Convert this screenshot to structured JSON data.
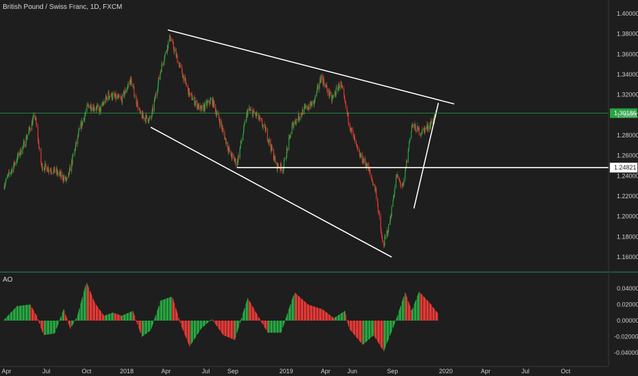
{
  "chart_data": [
    {
      "type": "candlestick",
      "title": "British Pound / Swiss Franc, 1D, FXCM",
      "ylim": [
        1.15,
        1.41
      ],
      "y_ticks": [
        "1.40000",
        "1.38000",
        "1.36000",
        "1.34000",
        "1.32000",
        "1.30000",
        "1.28000",
        "1.26000",
        "1.24000",
        "1.22000",
        "1.20000",
        "1.18000",
        "1.16000"
      ],
      "x_ticks": [
        "Apr",
        "Jul",
        "Oct",
        "2018",
        "Apr",
        "Jul",
        "Sep",
        "2019",
        "Apr",
        "Jun",
        "Sep",
        "2020",
        "Apr",
        "Jul",
        "Oct"
      ],
      "up_color": "#26a641",
      "down_color": "#e53935",
      "price_path": [
        [
          "2017-03-25",
          1.23
        ],
        [
          "2017-05-10",
          1.27
        ],
        [
          "2017-06-05",
          1.3
        ],
        [
          "2017-06-20",
          1.25
        ],
        [
          "2017-07-20",
          1.245
        ],
        [
          "2017-08-18",
          1.235
        ],
        [
          "2017-09-15",
          1.285
        ],
        [
          "2017-10-05",
          1.31
        ],
        [
          "2017-11-01",
          1.305
        ],
        [
          "2017-11-20",
          1.32
        ],
        [
          "2017-12-20",
          1.315
        ],
        [
          "2018-01-10",
          1.335
        ],
        [
          "2018-02-01",
          1.3
        ],
        [
          "2018-02-25",
          1.295
        ],
        [
          "2018-03-20",
          1.345
        ],
        [
          "2018-04-10",
          1.377
        ],
        [
          "2018-05-01",
          1.35
        ],
        [
          "2018-05-25",
          1.32
        ],
        [
          "2018-06-20",
          1.305
        ],
        [
          "2018-07-15",
          1.315
        ],
        [
          "2018-08-05",
          1.29
        ],
        [
          "2018-08-25",
          1.262
        ],
        [
          "2018-09-10",
          1.252
        ],
        [
          "2018-10-05",
          1.305
        ],
        [
          "2018-10-25",
          1.3
        ],
        [
          "2018-11-15",
          1.285
        ],
        [
          "2018-12-10",
          1.25
        ],
        [
          "2018-12-25",
          1.248
        ],
        [
          "2019-01-15",
          1.29
        ],
        [
          "2019-02-10",
          1.305
        ],
        [
          "2019-03-05",
          1.312
        ],
        [
          "2019-03-22",
          1.338
        ],
        [
          "2019-04-15",
          1.315
        ],
        [
          "2019-05-05",
          1.332
        ],
        [
          "2019-05-25",
          1.292
        ],
        [
          "2019-06-15",
          1.262
        ],
        [
          "2019-07-05",
          1.25
        ],
        [
          "2019-07-25",
          1.225
        ],
        [
          "2019-08-10",
          1.17
        ],
        [
          "2019-08-25",
          1.192
        ],
        [
          "2019-09-10",
          1.24
        ],
        [
          "2019-09-25",
          1.228
        ],
        [
          "2019-10-15",
          1.29
        ],
        [
          "2019-11-05",
          1.283
        ],
        [
          "2019-11-25",
          1.29
        ],
        [
          "2019-12-10",
          1.3
        ]
      ],
      "annotations": [
        {
          "type": "trendline",
          "from": [
            "2018-04-05",
            1.384
          ],
          "to": [
            "2020-01-20",
            1.311
          ]
        },
        {
          "type": "trendline",
          "from": [
            "2018-02-25",
            1.288
          ],
          "to": [
            "2019-08-30",
            1.16
          ]
        },
        {
          "type": "trendline",
          "from": [
            "2019-10-20",
            1.208
          ],
          "to": [
            "2019-12-15",
            1.312
          ]
        },
        {
          "type": "hline",
          "y": 1.24821,
          "from": "2018-09-10",
          "label": "1.24821"
        },
        {
          "type": "price_line",
          "y": 1.30186,
          "label": "1.30186",
          "color": "#26a641"
        }
      ]
    },
    {
      "type": "bar",
      "title": "AO",
      "ylim": [
        -0.047,
        0.047
      ],
      "y_ticks": [
        "0.04000",
        "0.02000",
        "0.00000",
        "-0.02000",
        "-0.04000"
      ],
      "up_color": "#26a641",
      "down_color": "#e53935",
      "ao_path": [
        [
          "2017-03-25",
          0.0
        ],
        [
          "2017-04-25",
          0.018
        ],
        [
          "2017-05-25",
          0.02
        ],
        [
          "2017-06-10",
          0.005
        ],
        [
          "2017-06-25",
          -0.018
        ],
        [
          "2017-07-20",
          -0.016
        ],
        [
          "2017-08-10",
          0.014
        ],
        [
          "2017-08-25",
          -0.01
        ],
        [
          "2017-09-10",
          0.005
        ],
        [
          "2017-10-01",
          0.048
        ],
        [
          "2017-10-20",
          0.022
        ],
        [
          "2017-11-10",
          0.006
        ],
        [
          "2017-12-01",
          0.01
        ],
        [
          "2017-12-20",
          0.006
        ],
        [
          "2018-01-15",
          0.012
        ],
        [
          "2018-02-05",
          -0.02
        ],
        [
          "2018-02-25",
          -0.012
        ],
        [
          "2018-03-20",
          0.025
        ],
        [
          "2018-04-15",
          0.03
        ],
        [
          "2018-05-05",
          -0.005
        ],
        [
          "2018-05-25",
          -0.032
        ],
        [
          "2018-06-20",
          -0.01
        ],
        [
          "2018-07-15",
          0.002
        ],
        [
          "2018-08-10",
          -0.018
        ],
        [
          "2018-09-05",
          -0.024
        ],
        [
          "2018-10-05",
          0.028
        ],
        [
          "2018-10-30",
          0.004
        ],
        [
          "2018-11-20",
          -0.015
        ],
        [
          "2018-12-20",
          -0.015
        ],
        [
          "2019-01-20",
          0.035
        ],
        [
          "2019-02-20",
          0.02
        ],
        [
          "2019-03-25",
          0.014
        ],
        [
          "2019-04-20",
          0.003
        ],
        [
          "2019-05-15",
          0.012
        ],
        [
          "2019-05-25",
          -0.01
        ],
        [
          "2019-06-25",
          -0.03
        ],
        [
          "2019-07-20",
          -0.018
        ],
        [
          "2019-08-12",
          -0.038
        ],
        [
          "2019-09-10",
          0.002
        ],
        [
          "2019-09-30",
          0.035
        ],
        [
          "2019-10-15",
          0.012
        ],
        [
          "2019-11-01",
          0.036
        ],
        [
          "2019-11-25",
          0.022
        ],
        [
          "2019-12-15",
          0.008
        ]
      ]
    }
  ]
}
